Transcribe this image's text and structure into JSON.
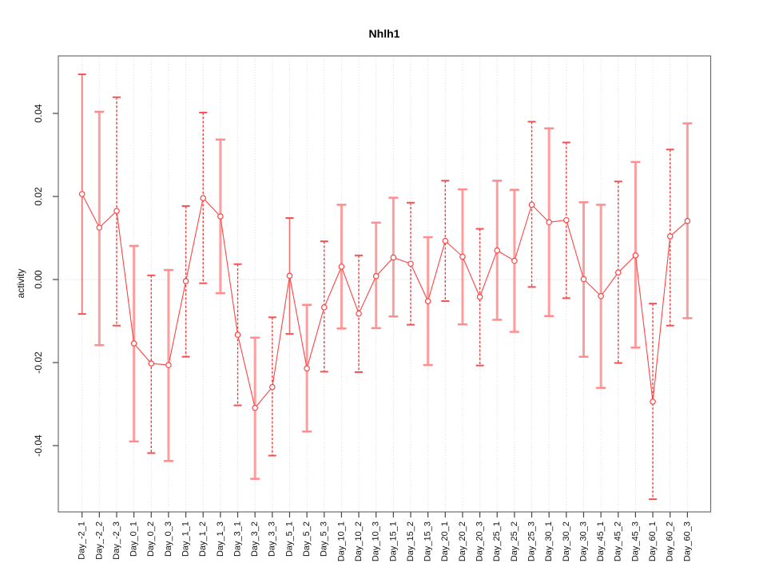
{
  "window": {
    "background": "#ffffff"
  },
  "chart_data": {
    "type": "line",
    "title": "Nhlh1",
    "xlabel": "",
    "ylabel": "activity",
    "grid": "vertical-dotted-per-category, dotted-zero-line",
    "legend": "none",
    "ylim": [
      -0.056,
      0.054
    ],
    "yticks": [
      -0.04,
      -0.02,
      0.0,
      0.02,
      0.04
    ],
    "ytick_labels": [
      "-0.04",
      "-0.02",
      "0.00",
      "0.02",
      "0.04"
    ],
    "marker": "open-circle",
    "categories": [
      "Day_-2_1",
      "Day_-2_2",
      "Day_-2_3",
      "Day_0_1",
      "Day_0_2",
      "Day_0_3",
      "Day_1_1",
      "Day_1_2",
      "Day_1_3",
      "Day_3_1",
      "Day_3_2",
      "Day_3_3",
      "Day_5_1",
      "Day_5_2",
      "Day_5_3",
      "Day_10_1",
      "Day_10_2",
      "Day_10_3",
      "Day_15_1",
      "Day_15_2",
      "Day_15_3",
      "Day_20_1",
      "Day_20_2",
      "Day_20_3",
      "Day_25_1",
      "Day_25_2",
      "Day_25_3",
      "Day_30_1",
      "Day_30_2",
      "Day_30_3",
      "Day_45_1",
      "Day_45_2",
      "Day_45_3",
      "Day_60_1",
      "Day_60_2",
      "Day_60_3"
    ],
    "values": [
      0.0206,
      0.0125,
      0.0165,
      -0.0154,
      -0.0202,
      -0.0206,
      -0.0004,
      0.0196,
      0.0152,
      -0.0133,
      -0.0309,
      -0.0259,
      0.0009,
      -0.0214,
      -0.0067,
      0.0031,
      -0.0082,
      0.0008,
      0.0053,
      0.0038,
      -0.0052,
      0.0093,
      0.0055,
      -0.0042,
      0.007,
      0.0045,
      0.018,
      0.0138,
      0.0143,
      0.0001,
      -0.004,
      0.0017,
      0.0058,
      -0.0294,
      0.0104,
      0.0141
    ],
    "error_low": [
      -0.0083,
      -0.0158,
      -0.0111,
      -0.039,
      -0.0418,
      -0.0437,
      -0.0186,
      -0.0009,
      -0.0033,
      -0.0303,
      -0.048,
      -0.0424,
      -0.0131,
      -0.0366,
      -0.0222,
      -0.0118,
      -0.0223,
      -0.0117,
      -0.0089,
      -0.0109,
      -0.0206,
      -0.0052,
      -0.0108,
      -0.0207,
      -0.0097,
      -0.0126,
      -0.0018,
      -0.0088,
      -0.0045,
      -0.0186,
      -0.0261,
      -0.0201,
      -0.0164,
      -0.0529,
      -0.0111,
      -0.0093
    ],
    "error_high": [
      0.0494,
      0.0404,
      0.0439,
      0.0081,
      0.001,
      0.0023,
      0.0177,
      0.0402,
      0.0337,
      0.0037,
      -0.014,
      -0.0091,
      0.0148,
      -0.0061,
      0.0092,
      0.018,
      0.0058,
      0.0137,
      0.0197,
      0.0185,
      0.0102,
      0.0238,
      0.0217,
      0.0122,
      0.0238,
      0.0216,
      0.038,
      0.0364,
      0.033,
      0.0186,
      0.018,
      0.0236,
      0.0283,
      -0.0058,
      0.0313,
      0.0376
    ],
    "bar_styles": [
      "solid",
      "wide",
      "dashed",
      "wide",
      "dashed",
      "wide",
      "dashed",
      "dashed",
      "wide",
      "dashed",
      "wide",
      "dashed",
      "solid",
      "wide",
      "dashed",
      "wide",
      "dashed",
      "wide",
      "wide",
      "dashed",
      "wide",
      "dashed",
      "wide",
      "dashed",
      "wide",
      "wide",
      "dashed",
      "wide",
      "dashed",
      "wide",
      "wide",
      "dashed",
      "wide",
      "dashed",
      "dashed",
      "wide"
    ],
    "colors": {
      "series": "#ff4343",
      "marker_fill": "#ffffff",
      "errorbar_solid": "#f85555",
      "errorbar_dashed": "#ee4040",
      "errorbar_wide": "#ff8d8d",
      "cap": "#f75050",
      "grid": "#d9d9d9",
      "zero_line": "#dccccc",
      "axis_box": "#6e6e6e",
      "tick": "#444444",
      "text": "#111111"
    }
  }
}
